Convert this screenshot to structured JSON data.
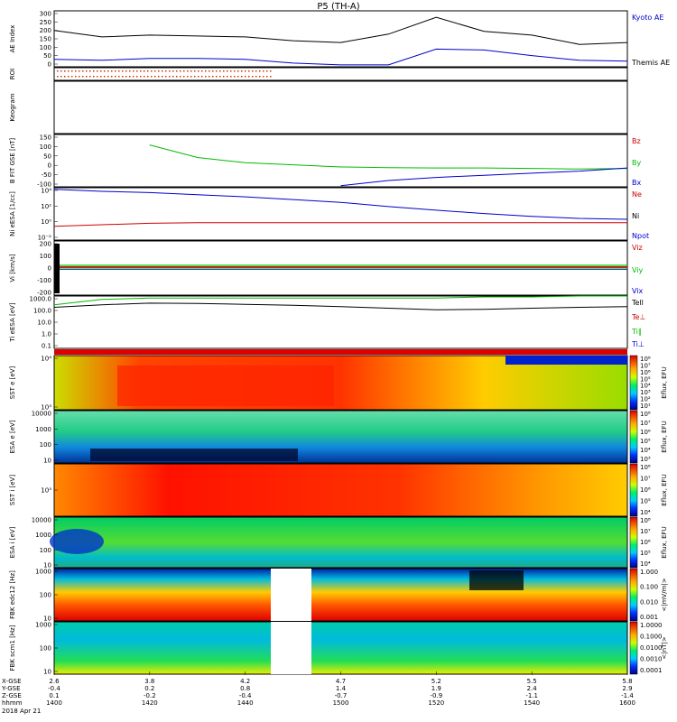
{
  "title": "P5 (TH-A)",
  "date": "2018 Apr 21",
  "time_ticks": [
    "1400",
    "1420",
    "1440",
    "1500",
    "1520",
    "1540",
    "1600"
  ],
  "ephemeris": {
    "labels": [
      "X-GSE",
      "Y-GSE",
      "Z-GSE",
      "hhmm"
    ],
    "x_gse": [
      "2.6",
      "3.8",
      "4.2",
      "4.7",
      "5.2",
      "5.5",
      "5.8"
    ],
    "y_gse": [
      "-0.4",
      "0.2",
      "0.8",
      "1.4",
      "1.9",
      "2.4",
      "2.9"
    ],
    "z_gse": [
      "0.1",
      "-0.2",
      "-0.4",
      "-0.7",
      "-0.9",
      "-1.1",
      "-1.4"
    ]
  },
  "panels": {
    "ae": {
      "ylabel": "AE Index",
      "ticks": [
        "300",
        "250",
        "200",
        "150",
        "100",
        "50",
        "0"
      ],
      "legend": [
        "Kyoto AE",
        "Themis AE"
      ],
      "legend_colors": [
        "#0000cc",
        "#000000"
      ]
    },
    "roi": {
      "ylabel": "ROI"
    },
    "keogram": {
      "ylabel": "Keogram"
    },
    "bfit": {
      "ylabel": "B FIT GSE [nT]",
      "ticks": [
        "150",
        "100",
        "50",
        "0",
        "-50",
        "-100"
      ],
      "legend": [
        "Bz",
        "By",
        "Bx"
      ],
      "legend_colors": [
        "#cc0000",
        "#00bb00",
        "#0000cc"
      ]
    },
    "ni": {
      "ylabel": "Ni eESA [1/cc]",
      "ticks": [
        "10⁴",
        "10²",
        "10⁰",
        "10⁻²"
      ],
      "legend": [
        "Ne",
        "Ni",
        "Npot"
      ],
      "legend_colors": [
        "#cc0000",
        "#000000",
        "#0000cc"
      ]
    },
    "vi": {
      "ylabel": "Vi [km/s]",
      "ticks": [
        "200",
        "100",
        "0",
        "-100",
        "-200"
      ],
      "legend": [
        "Viz",
        "Viy",
        "Vix"
      ],
      "legend_colors": [
        "#cc0000",
        "#00bb00",
        "#0000cc"
      ]
    },
    "ti": {
      "ylabel": "Ti eESA [eV]",
      "ticks": [
        "1000.0",
        "100.0",
        "10.0",
        "1.0",
        "0.1"
      ],
      "legend": [
        "Tell",
        "Te⊥",
        "Ti∥",
        "Ti⊥"
      ],
      "legend_colors": [
        "#000000",
        "#cc0000",
        "#00bb00",
        "#0000cc"
      ]
    },
    "sst_e": {
      "ylabel": "SST e [eV]",
      "ticks": [
        "10⁴",
        "10³"
      ],
      "cbar": [
        "10⁸",
        "10⁷",
        "10⁶",
        "10⁵",
        "10⁴",
        "10³",
        "10²",
        "10¹"
      ],
      "cbar_label": "Eflux, EFU"
    },
    "esa_e": {
      "ylabel": "ESA e [eV]",
      "ticks": [
        "10000",
        "1000",
        "100",
        "10"
      ],
      "cbar": [
        "10⁸",
        "10⁷",
        "10⁶",
        "10⁵",
        "10⁴",
        "10³"
      ],
      "cbar_label": "Eflux, EFU"
    },
    "sst_i": {
      "ylabel": "SST i [eV]",
      "ticks": [
        "10³"
      ],
      "cbar": [
        "10⁸",
        "10⁷",
        "10⁶",
        "10⁵",
        "10⁴"
      ],
      "cbar_label": "Eflux, EFU"
    },
    "esa_i": {
      "ylabel": "ESA i [eV]",
      "ticks": [
        "10000",
        "1000",
        "100",
        "10"
      ],
      "cbar": [
        "10⁸",
        "10⁷",
        "10⁶",
        "10⁵",
        "10⁴"
      ],
      "cbar_label": "Eflux, EFU"
    },
    "fbk_e": {
      "ylabel": "FBK edc12 [Hz]",
      "ticks": [
        "1000",
        "100",
        "10"
      ],
      "cbar": [
        "1.000",
        "0.100",
        "0.010",
        "0.001"
      ],
      "cbar_label": "<|mV/m|>"
    },
    "fbk_b": {
      "ylabel": "FBK scm1 [Hz]",
      "ticks": [
        "1000",
        "100",
        "10"
      ],
      "cbar": [
        "1.0000",
        "0.1000",
        "0.0100",
        "0.0010",
        "0.0001"
      ],
      "cbar_label": "<|nT|>"
    }
  },
  "chart_data": {
    "type": "line",
    "title": "P5 (TH-A)",
    "x": [
      "1400",
      "1410",
      "1420",
      "1430",
      "1440",
      "1450",
      "1500",
      "1510",
      "1520",
      "1530",
      "1540",
      "1550",
      "1600"
    ],
    "series": [
      {
        "name": "Themis AE",
        "panel": "AE Index",
        "values": [
          195,
          160,
          170,
          165,
          160,
          140,
          130,
          175,
          265,
          190,
          170,
          120,
          130
        ]
      },
      {
        "name": "Kyoto AE",
        "panel": "AE Index",
        "values": [
          40,
          35,
          45,
          45,
          40,
          20,
          10,
          10,
          95,
          90,
          60,
          35,
          30
        ]
      },
      {
        "name": "By",
        "panel": "B FIT GSE [nT]",
        "values": [
          null,
          null,
          100,
          40,
          15,
          5,
          -5,
          -8,
          -10,
          -10,
          -12,
          -15,
          -12
        ]
      },
      {
        "name": "Bx",
        "panel": "B FIT GSE [nT]",
        "values": [
          null,
          null,
          null,
          null,
          null,
          null,
          -95,
          -70,
          -55,
          -45,
          -35,
          -25,
          -10
        ]
      },
      {
        "name": "Ni",
        "panel": "Ni eESA [1/cc]",
        "values": [
          60000,
          30000,
          20000,
          10000,
          5000,
          2000,
          800,
          200,
          60,
          20,
          8,
          4,
          3
        ]
      },
      {
        "name": "Ne",
        "panel": "Ni eESA [1/cc]",
        "values": [
          0.3,
          0.5,
          0.8,
          1,
          1,
          1,
          1,
          1,
          1,
          1,
          1,
          1,
          1
        ]
      },
      {
        "name": "Tell",
        "panel": "Ti eESA [eV]",
        "values": [
          300,
          500,
          700,
          650,
          550,
          450,
          350,
          250,
          180,
          200,
          250,
          300,
          350
        ]
      },
      {
        "name": "Ti∥",
        "panel": "Ti eESA [eV]",
        "values": [
          500,
          1500,
          2000,
          2000,
          2000,
          2000,
          2000,
          2000,
          2000,
          2500,
          2500,
          3000,
          3500
        ]
      }
    ],
    "ylim": {
      "AE Index": [
        0,
        300
      ],
      "B FIT GSE [nT]": [
        -100,
        150
      ],
      "Vi [km/s]": [
        -300,
        300
      ],
      "Ti eESA [eV]": [
        0.1,
        3000
      ]
    },
    "yscale": {
      "Ni eESA [1/cc]": "log",
      "Ti eESA [eV]": "log"
    },
    "legend_position": "right"
  }
}
